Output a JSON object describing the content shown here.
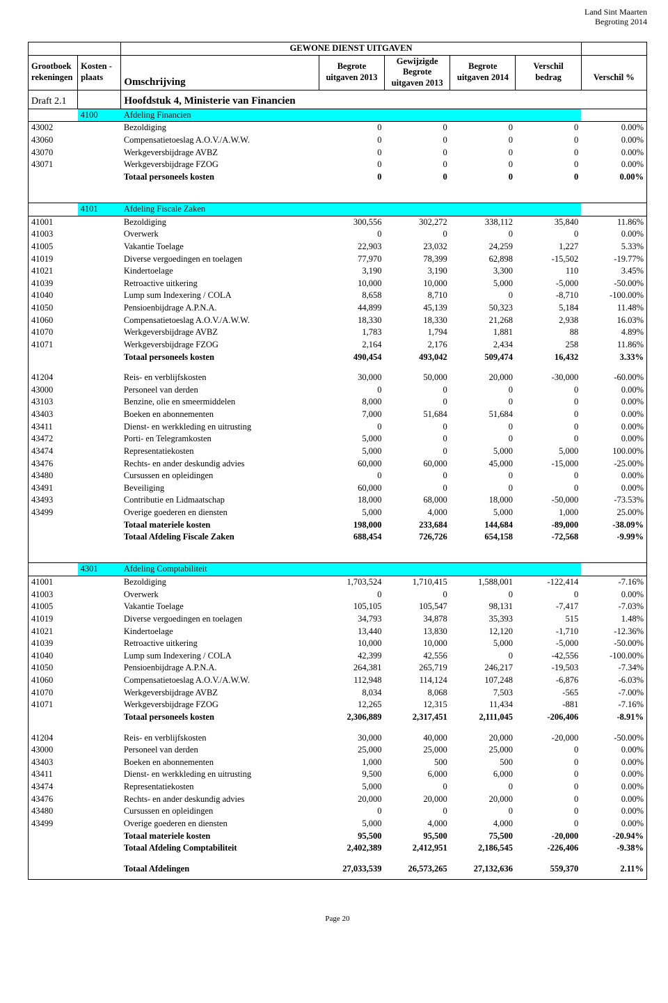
{
  "document": {
    "corner_line1": "Land Sint Maarten",
    "corner_line2": "Begroting 2014",
    "section_title": "GEWONE DIENST UITGAVEN",
    "footer": "Page 20"
  },
  "colors": {
    "highlight": "#00ffff",
    "border": "#000000",
    "background": "#ffffff"
  },
  "columns": [
    {
      "key": "code",
      "label_line1": "Grootboek",
      "label_line2": "rekeningen",
      "align": "left",
      "width_pct": 8
    },
    {
      "key": "kost",
      "label_line1": "Kosten -",
      "label_line2": "plaats",
      "align": "left",
      "width_pct": 7
    },
    {
      "key": "desc",
      "label_line1": "",
      "label_line2": "Omschrijving",
      "align": "left",
      "width_pct": 32
    },
    {
      "key": "c1",
      "label_line1": "Begrote",
      "label_line2": "uitgaven 2013",
      "align": "center",
      "width_pct": 10.6
    },
    {
      "key": "c2",
      "label_line1": "Gewijzigde",
      "label_line2": "Begrote",
      "label_line3": "uitgaven 2013",
      "align": "center",
      "width_pct": 10.6
    },
    {
      "key": "c3",
      "label_line1": "Begrote",
      "label_line2": "uitgaven 2014",
      "align": "center",
      "width_pct": 10.6
    },
    {
      "key": "c4",
      "label_line1": "Verschil",
      "label_line2": "bedrag",
      "align": "center",
      "width_pct": 10.6
    },
    {
      "key": "c5",
      "label_line1": "",
      "label_line2": "Verschil %",
      "align": "center",
      "width_pct": 10.6
    }
  ],
  "chapter": {
    "code": "Draft 2.1",
    "desc": "Hoofdstuk 4, Ministerie van Financien"
  },
  "sections": [
    {
      "header": {
        "kost": "4100",
        "desc": "Afdeling Financien"
      },
      "rows": [
        {
          "code": "43002",
          "desc": "Bezoldiging",
          "c1": "0",
          "c2": "0",
          "c3": "0",
          "c4": "0",
          "c5": "0.00%"
        },
        {
          "code": "43060",
          "desc": "Compensatietoeslag A.O.V./A.W.W.",
          "c1": "0",
          "c2": "0",
          "c3": "0",
          "c4": "0",
          "c5": "0.00%"
        },
        {
          "code": "43070",
          "desc": "Werkgeversbijdrage AVBZ",
          "c1": "0",
          "c2": "0",
          "c3": "0",
          "c4": "0",
          "c5": "0.00%"
        },
        {
          "code": "43071",
          "desc": "Werkgeversbijdrage FZOG",
          "c1": "0",
          "c2": "0",
          "c3": "0",
          "c4": "0",
          "c5": "0.00%"
        }
      ],
      "totals": [
        {
          "desc": "Totaal personeels kosten",
          "c1": "0",
          "c2": "0",
          "c3": "0",
          "c4": "0",
          "c5": "0.00%",
          "bold": true
        }
      ]
    },
    {
      "header": {
        "kost": "4101",
        "desc": "Afdeling Fiscale Zaken"
      },
      "rows": [
        {
          "code": "41001",
          "desc": "Bezoldiging",
          "c1": "300,556",
          "c2": "302,272",
          "c3": "338,112",
          "c4": "35,840",
          "c5": "11.86%"
        },
        {
          "code": "41003",
          "desc": "Overwerk",
          "c1": "0",
          "c2": "0",
          "c3": "0",
          "c4": "0",
          "c5": "0.00%"
        },
        {
          "code": "41005",
          "desc": "Vakantie Toelage",
          "c1": "22,903",
          "c2": "23,032",
          "c3": "24,259",
          "c4": "1,227",
          "c5": "5.33%"
        },
        {
          "code": "41019",
          "desc": "Diverse vergoedingen en toelagen",
          "c1": "77,970",
          "c2": "78,399",
          "c3": "62,898",
          "c4": "-15,502",
          "c5": "-19.77%"
        },
        {
          "code": "41021",
          "desc": "Kindertoelage",
          "c1": "3,190",
          "c2": "3,190",
          "c3": "3,300",
          "c4": "110",
          "c5": "3.45%"
        },
        {
          "code": "41039",
          "desc": "Retroactive uitkering",
          "c1": "10,000",
          "c2": "10,000",
          "c3": "5,000",
          "c4": "-5,000",
          "c5": "-50.00%"
        },
        {
          "code": "41040",
          "desc": "Lump sum Indexering / COLA",
          "c1": "8,658",
          "c2": "8,710",
          "c3": "0",
          "c4": "-8,710",
          "c5": "-100.00%"
        },
        {
          "code": "41050",
          "desc": "Pensioenbijdrage A.P.N.A.",
          "c1": "44,899",
          "c2": "45,139",
          "c3": "50,323",
          "c4": "5,184",
          "c5": "11.48%"
        },
        {
          "code": "41060",
          "desc": "Compensatietoeslag A.O.V./A.W.W.",
          "c1": "18,330",
          "c2": "18,330",
          "c3": "21,268",
          "c4": "2,938",
          "c5": "16.03%"
        },
        {
          "code": "41070",
          "desc": "Werkgeversbijdrage AVBZ",
          "c1": "1,783",
          "c2": "1,794",
          "c3": "1,881",
          "c4": "88",
          "c5": "4.89%"
        },
        {
          "code": "41071",
          "desc": "Werkgeversbijdrage FZOG",
          "c1": "2,164",
          "c2": "2,176",
          "c3": "2,434",
          "c4": "258",
          "c5": "11.86%"
        }
      ],
      "totals": [
        {
          "desc": "Totaal personeels kosten",
          "c1": "490,454",
          "c2": "493,042",
          "c3": "509,474",
          "c4": "16,432",
          "c5": "3.33%",
          "bold": true
        }
      ],
      "rows2": [
        {
          "code": "41204",
          "desc": "Reis- en verblijfskosten",
          "c1": "30,000",
          "c2": "50,000",
          "c3": "20,000",
          "c4": "-30,000",
          "c5": "-60.00%"
        },
        {
          "code": "43000",
          "desc": "Personeel van derden",
          "c1": "0",
          "c2": "0",
          "c3": "0",
          "c4": "0",
          "c5": "0.00%"
        },
        {
          "code": "43103",
          "desc": "Benzine, olie en smeermiddelen",
          "c1": "8,000",
          "c2": "0",
          "c3": "0",
          "c4": "0",
          "c5": "0.00%"
        },
        {
          "code": "43403",
          "desc": "Boeken en abonnementen",
          "c1": "7,000",
          "c2": "51,684",
          "c3": "51,684",
          "c4": "0",
          "c5": "0.00%"
        },
        {
          "code": "43411",
          "desc": "Dienst- en werkkleding en uitrusting",
          "c1": "0",
          "c2": "0",
          "c3": "0",
          "c4": "0",
          "c5": "0.00%"
        },
        {
          "code": "43472",
          "desc": "Porti- en Telegramkosten",
          "c1": "5,000",
          "c2": "0",
          "c3": "0",
          "c4": "0",
          "c5": "0.00%"
        },
        {
          "code": "43474",
          "desc": "Representatiekosten",
          "c1": "5,000",
          "c2": "0",
          "c3": "5,000",
          "c4": "5,000",
          "c5": "100.00%"
        },
        {
          "code": "43476",
          "desc": "Rechts- en ander deskundig advies",
          "c1": "60,000",
          "c2": "60,000",
          "c3": "45,000",
          "c4": "-15,000",
          "c5": "-25.00%"
        },
        {
          "code": "43480",
          "desc": "Cursussen en opleidingen",
          "c1": "0",
          "c2": "0",
          "c3": "0",
          "c4": "0",
          "c5": "0.00%"
        },
        {
          "code": "43491",
          "desc": " Beveiliging",
          "c1": "60,000",
          "c2": "0",
          "c3": "0",
          "c4": "0",
          "c5": "0.00%"
        },
        {
          "code": "43493",
          "desc": "Contributie en Lidmaatschap",
          "c1": "18,000",
          "c2": "68,000",
          "c3": "18,000",
          "c4": "-50,000",
          "c5": "-73.53%"
        },
        {
          "code": "43499",
          "desc": "Overige goederen en diensten",
          "c1": "5,000",
          "c2": "4,000",
          "c3": "5,000",
          "c4": "1,000",
          "c5": "25.00%"
        }
      ],
      "totals2": [
        {
          "desc": "Totaal materiele kosten",
          "c1": "198,000",
          "c2": "233,684",
          "c3": "144,684",
          "c4": "-89,000",
          "c5": "-38.09%",
          "bold": true
        },
        {
          "desc": "Totaal Afdeling Fiscale Zaken",
          "c1": "688,454",
          "c2": "726,726",
          "c3": "654,158",
          "c4": "-72,568",
          "c5": "-9.99%",
          "bold": true
        }
      ]
    },
    {
      "header": {
        "kost": "4301",
        "desc": "Afdeling Comptabiliteit"
      },
      "rows": [
        {
          "code": "41001",
          "desc": "Bezoldiging",
          "c1": "1,703,524",
          "c2": "1,710,415",
          "c3": "1,588,001",
          "c4": "-122,414",
          "c5": "-7.16%"
        },
        {
          "code": "41003",
          "desc": "Overwerk",
          "c1": "0",
          "c2": "0",
          "c3": "0",
          "c4": "0",
          "c5": "0.00%"
        },
        {
          "code": "41005",
          "desc": "Vakantie Toelage",
          "c1": "105,105",
          "c2": "105,547",
          "c3": "98,131",
          "c4": "-7,417",
          "c5": "-7.03%"
        },
        {
          "code": "41019",
          "desc": "Diverse vergoedingen en toelagen",
          "c1": "34,793",
          "c2": "34,878",
          "c3": "35,393",
          "c4": "515",
          "c5": "1.48%"
        },
        {
          "code": "41021",
          "desc": "Kindertoelage",
          "c1": "13,440",
          "c2": "13,830",
          "c3": "12,120",
          "c4": "-1,710",
          "c5": "-12.36%"
        },
        {
          "code": "41039",
          "desc": "Retroactive uitkering",
          "c1": "10,000",
          "c2": "10,000",
          "c3": "5,000",
          "c4": "-5,000",
          "c5": "-50.00%"
        },
        {
          "code": "41040",
          "desc": "Lump sum Indexering / COLA",
          "c1": "42,399",
          "c2": "42,556",
          "c3": "0",
          "c4": "-42,556",
          "c5": "-100.00%"
        },
        {
          "code": "41050",
          "desc": "Pensioenbijdrage A.P.N.A.",
          "c1": "264,381",
          "c2": "265,719",
          "c3": "246,217",
          "c4": "-19,503",
          "c5": "-7.34%"
        },
        {
          "code": "41060",
          "desc": "Compensatietoeslag A.O.V./A.W.W.",
          "c1": "112,948",
          "c2": "114,124",
          "c3": "107,248",
          "c4": "-6,876",
          "c5": "-6.03%"
        },
        {
          "code": "41070",
          "desc": "Werkgeversbijdrage AVBZ",
          "c1": "8,034",
          "c2": "8,068",
          "c3": "7,503",
          "c4": "-565",
          "c5": "-7.00%"
        },
        {
          "code": "41071",
          "desc": "Werkgeversbijdrage FZOG",
          "c1": "12,265",
          "c2": "12,315",
          "c3": "11,434",
          "c4": "-881",
          "c5": "-7.16%"
        }
      ],
      "totals": [
        {
          "desc": "Totaal personeels kosten",
          "c1": "2,306,889",
          "c2": "2,317,451",
          "c3": "2,111,045",
          "c4": "-206,406",
          "c5": "-8.91%",
          "bold": true
        }
      ],
      "rows2": [
        {
          "code": "41204",
          "desc": "Reis- en verblijfskosten",
          "c1": "30,000",
          "c2": "40,000",
          "c3": "20,000",
          "c4": "-20,000",
          "c5": "-50.00%"
        },
        {
          "code": "43000",
          "desc": "Personeel van derden",
          "c1": "25,000",
          "c2": "25,000",
          "c3": "25,000",
          "c4": "0",
          "c5": "0.00%"
        },
        {
          "code": "43403",
          "desc": "Boeken en abonnementen",
          "c1": "1,000",
          "c2": "500",
          "c3": "500",
          "c4": "0",
          "c5": "0.00%"
        },
        {
          "code": "43411",
          "desc": "Dienst- en werkkleding en uitrusting",
          "c1": "9,500",
          "c2": "6,000",
          "c3": "6,000",
          "c4": "0",
          "c5": "0.00%"
        },
        {
          "code": "43474",
          "desc": "Representatiekosten",
          "c1": "5,000",
          "c2": "0",
          "c3": "0",
          "c4": "0",
          "c5": "0.00%"
        },
        {
          "code": "43476",
          "desc": "Rechts- en ander deskundig advies",
          "c1": "20,000",
          "c2": "20,000",
          "c3": "20,000",
          "c4": "0",
          "c5": "0.00%"
        },
        {
          "code": "43480",
          "desc": "Cursussen en opleidingen",
          "c1": "0",
          "c2": "0",
          "c3": "0",
          "c4": "0",
          "c5": "0.00%"
        },
        {
          "code": "43499",
          "desc": "Overige goederen en diensten",
          "c1": "5,000",
          "c2": "4,000",
          "c3": "4,000",
          "c4": "0",
          "c5": "0.00%"
        }
      ],
      "totals2": [
        {
          "desc": "Totaal materiele kosten",
          "c1": "95,500",
          "c2": "95,500",
          "c3": "75,500",
          "c4": "-20,000",
          "c5": "-20.94%",
          "bold": true
        },
        {
          "desc": "Totaal Afdeling Comptabiliteit",
          "c1": "2,402,389",
          "c2": "2,412,951",
          "c3": "2,186,545",
          "c4": "-226,406",
          "c5": "-9.38%",
          "bold": true
        }
      ],
      "grand": [
        {
          "desc": "Totaal Afdelingen",
          "c1": "27,033,539",
          "c2": "26,573,265",
          "c3": "27,132,636",
          "c4": "559,370",
          "c5": "2.11%",
          "bold": true
        }
      ]
    }
  ]
}
